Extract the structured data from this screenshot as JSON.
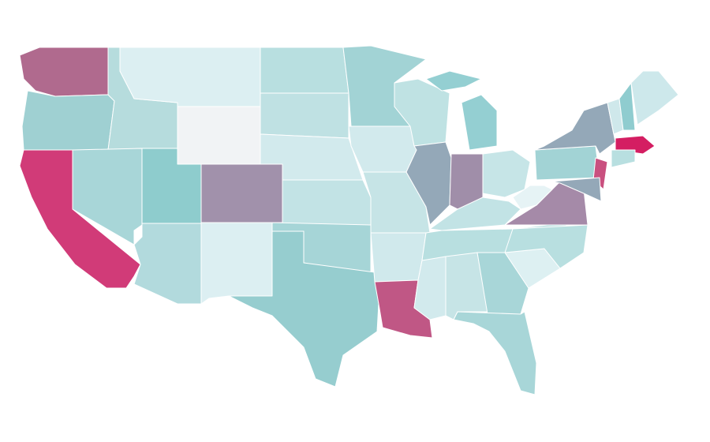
{
  "map": {
    "region_colors": [
      "#b06a8e",
      "#9fd0d2",
      "#d13b78",
      "#b6dcdd",
      "#a8d6d8",
      "#dceff2",
      "#f1f3f5",
      "#8ecccd",
      "#a191ab",
      "#b2dadd",
      "#dceff2",
      "#b8dfe0",
      "#bfe1e3",
      "#d2eaed",
      "#c2e3e5",
      "#a6d5d7",
      "#96cdcf",
      "#a2d3d5",
      "#d2eaed",
      "#c6e4e6",
      "#d0e9ec",
      "#c05785",
      "#bfe2e3",
      "#94a8b8",
      "#94cfd2",
      "#94cfd2",
      "#a08ea9",
      "#c6e5e7",
      "#c2e3e5",
      "#b8dfe0",
      "#d2eaed",
      "#c6e4e6",
      "#a8d6d8",
      "#a8d6d8",
      "#ddf0f2",
      "#b8dfe0",
      "#a58aa8",
      "#e6f3f5",
      "#a2d3d5",
      "#94a8b8",
      "#c9507f",
      "#94a8b8",
      "#cfe8eb",
      "#8fcccf",
      "#cde8eb",
      "#d41e62",
      "#b8dfe0"
    ]
  }
}
